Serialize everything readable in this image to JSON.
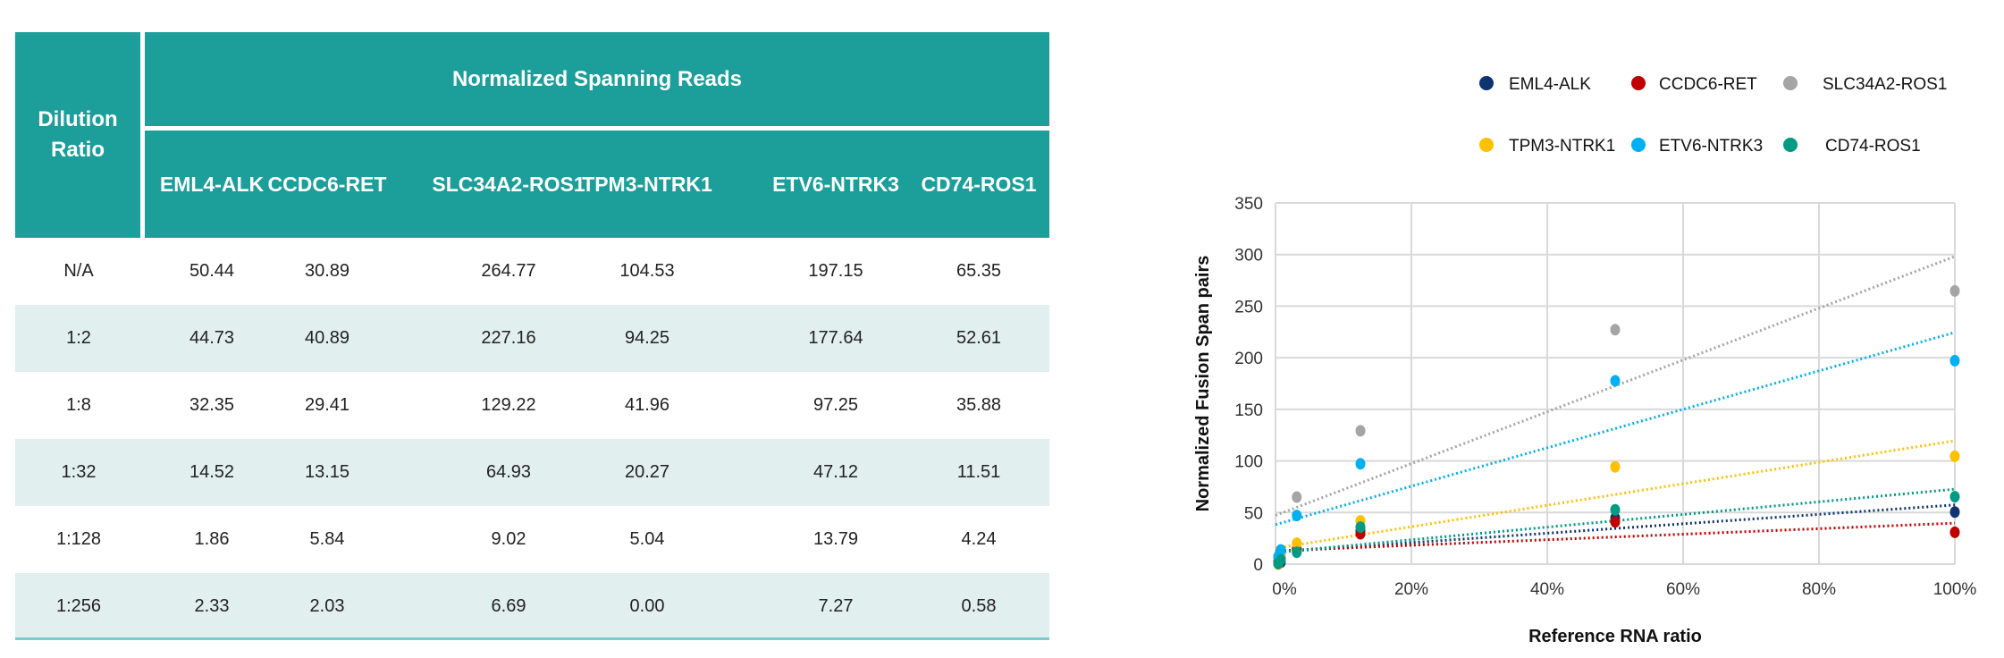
{
  "table": {
    "row_header": "Dilution Ratio",
    "group_header": "Normalized Spanning Reads",
    "columns": [
      "EML4-ALK",
      "CCDC6-RET",
      "SLC34A2-ROS1",
      "TPM3-NTRK1",
      "ETV6-NTRK3",
      "CD74-ROS1"
    ],
    "rows": [
      {
        "dilution": "N/A",
        "values": [
          "50.44",
          "30.89",
          "264.77",
          "104.53",
          "197.15",
          "65.35"
        ]
      },
      {
        "dilution": "1:2",
        "values": [
          "44.73",
          "40.89",
          "227.16",
          "94.25",
          "177.64",
          "52.61"
        ]
      },
      {
        "dilution": "1:8",
        "values": [
          "32.35",
          "29.41",
          "129.22",
          "41.96",
          "97.25",
          "35.88"
        ]
      },
      {
        "dilution": "1:32",
        "values": [
          "14.52",
          "13.15",
          "64.93",
          "20.27",
          "47.12",
          "11.51"
        ]
      },
      {
        "dilution": "1:128",
        "values": [
          "1.86",
          "5.84",
          "9.02",
          "5.04",
          "13.79",
          "4.24"
        ]
      },
      {
        "dilution": "1:256",
        "values": [
          "2.33",
          "2.03",
          "6.69",
          "0.00",
          "7.27",
          "0.58"
        ]
      }
    ],
    "colors": {
      "header": "#1c9e9a",
      "shade": "#e1efee"
    }
  },
  "chart_data": {
    "type": "scatter",
    "xlabel": "Reference RNA ratio",
    "ylabel": "Normalized Fusion Span pairs",
    "xlim": [
      0,
      1
    ],
    "ylim": [
      0,
      350
    ],
    "xticks": [
      "0%",
      "20%",
      "40%",
      "60%",
      "80%",
      "100%"
    ],
    "yticks": [
      "0",
      "50",
      "100",
      "150",
      "200",
      "250",
      "300",
      "350"
    ],
    "grid": true,
    "legend_position": "top",
    "trendlines": "linear",
    "x": [
      1,
      0.5,
      0.125,
      0.03125,
      0.0078125,
      0.00390625
    ],
    "series": [
      {
        "name": "EML4-ALK",
        "color": "#0d3370",
        "values": [
          50.44,
          44.73,
          32.35,
          14.52,
          1.86,
          2.33
        ]
      },
      {
        "name": "CCDC6-RET",
        "color": "#c00000",
        "values": [
          30.89,
          40.89,
          29.41,
          13.15,
          5.84,
          2.03
        ]
      },
      {
        "name": "SLC34A2-ROS1",
        "color": "#a5a5a5",
        "values": [
          264.77,
          227.16,
          129.22,
          64.93,
          9.02,
          6.69
        ]
      },
      {
        "name": "TPM3-NTRK1",
        "color": "#ffc000",
        "values": [
          104.53,
          94.25,
          41.96,
          20.27,
          5.04,
          0.0
        ]
      },
      {
        "name": "ETV6-NTRK3",
        "color": "#00b0f0",
        "values": [
          197.15,
          177.64,
          97.25,
          47.12,
          13.79,
          7.27
        ]
      },
      {
        "name": "CD74-ROS1",
        "color": "#009b82",
        "values": [
          65.35,
          52.61,
          35.88,
          11.51,
          4.24,
          0.58
        ]
      }
    ]
  }
}
